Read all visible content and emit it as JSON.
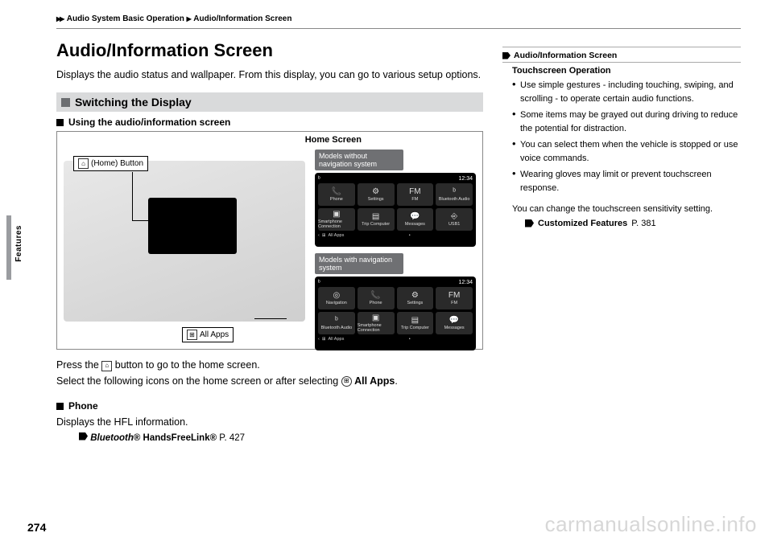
{
  "breadcrumb": {
    "triangles": "▶▶",
    "path1": "Audio System Basic Operation",
    "sep": "▶",
    "path2": "Audio/Information Screen"
  },
  "heading": "Audio/Information Screen",
  "intro": "Displays the audio status and wallpaper. From this display, you can go to various setup options.",
  "section_bar": "Switching the Display",
  "subhead": "Using the audio/information screen",
  "diagram": {
    "home_screen_label": "Home Screen",
    "home_button_label": "(Home) Button",
    "home_button_icon": "⌂",
    "all_apps_label": "All Apps",
    "all_apps_icon": "⊞",
    "label_without_nav": "Models without navigation system",
    "label_with_nav": "Models with navigation system",
    "clock": "12:34",
    "bt_icon": "ᵇ",
    "screen1_cells": [
      {
        "icon": "📞",
        "label": "Phone"
      },
      {
        "icon": "⚙",
        "label": "Settings"
      },
      {
        "icon": "FM",
        "label": "FM"
      },
      {
        "icon": "ᵇ",
        "label": "Bluetooth Audio"
      },
      {
        "icon": "▣",
        "label": "Smartphone Connection"
      },
      {
        "icon": "▤",
        "label": "Trip Computer"
      },
      {
        "icon": "💬",
        "label": "Messages"
      },
      {
        "icon": "⎆",
        "label": "USB1"
      }
    ],
    "screen2_cells": [
      {
        "icon": "◎",
        "label": "Navigation"
      },
      {
        "icon": "📞",
        "label": "Phone"
      },
      {
        "icon": "⚙",
        "label": "Settings"
      },
      {
        "icon": "FM",
        "label": "FM"
      },
      {
        "icon": "ᵇ",
        "label": "Bluetooth Audio"
      },
      {
        "icon": "▣",
        "label": "Smartphone Connection"
      },
      {
        "icon": "▤",
        "label": "Trip Computer"
      },
      {
        "icon": "💬",
        "label": "Messages"
      }
    ],
    "footer_all_apps": "All Apps"
  },
  "press_text_1": "Press the ",
  "press_text_2": " button to go to the home screen.",
  "select_text_1": "Select the following icons on the home screen or after selecting ",
  "select_text_2": " All Apps",
  "select_text_3": ".",
  "phone_head": "Phone",
  "phone_text": "Displays the HFL information.",
  "phone_ref_icon_label": "Bluetooth",
  "phone_ref": "® HandsFreeLink® ",
  "phone_ref_page": "P. 427",
  "sidebar": {
    "hdr": "Audio/Information Screen",
    "subhead": "Touchscreen Operation",
    "bullets": [
      "Use simple gestures - including touching, swiping, and scrolling - to operate certain audio functions.",
      "Some items may be grayed out during driving to reduce the potential for distraction.",
      "You can select them when the vehicle is stopped or use voice commands.",
      "Wearing gloves may limit or prevent touchscreen response."
    ],
    "para": "You can change the touchscreen sensitivity setting.",
    "ref": "Customized Features",
    "ref_page": "P. 381"
  },
  "side_tab": "Features",
  "page_number": "274",
  "watermark": "carmanualsonline.info"
}
